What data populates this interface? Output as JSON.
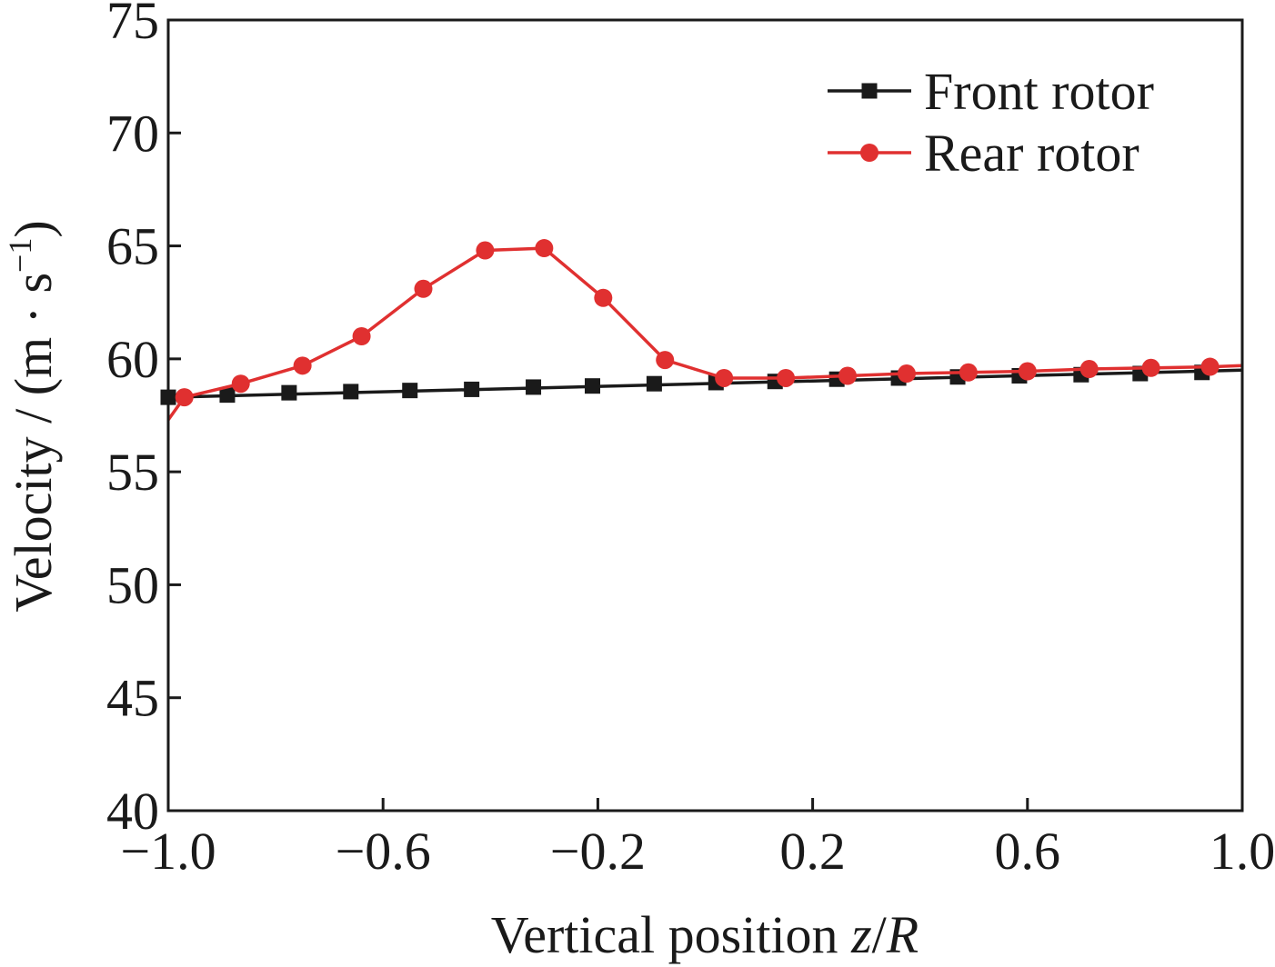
{
  "chart_data": {
    "type": "line",
    "title": "",
    "xlabel": "Vertical position z/R",
    "xlabel_parts": {
      "pre": "Vertical position ",
      "var1": "z",
      "slash": "/",
      "var2": "R"
    },
    "ylabel": "Velocity / (m · s−1)",
    "ylabel_parts": {
      "main": "Velocity / (m · s",
      "sup": "−1",
      "close": ")"
    },
    "xlim": [
      -1.0,
      1.0
    ],
    "ylim": [
      40,
      75
    ],
    "xticks": [
      -1.0,
      -0.6,
      -0.2,
      0.2,
      0.6,
      1.0
    ],
    "xtick_labels": [
      "−1.0",
      "−0.6",
      "−0.2",
      "0.2",
      "0.6",
      "1.0"
    ],
    "yticks": [
      40,
      45,
      50,
      55,
      60,
      65,
      70,
      75
    ],
    "ytick_labels": [
      "40",
      "45",
      "50",
      "55",
      "60",
      "65",
      "70",
      "75"
    ],
    "legend_position": "top-right",
    "series": [
      {
        "name": "Front rotor",
        "color": "#1a1a1a",
        "marker": "square",
        "line_x": [
          -1.0,
          1.0
        ],
        "line_y": [
          58.3,
          59.5
        ],
        "x": [
          -1.0,
          -0.89,
          -0.775,
          -0.66,
          -0.55,
          -0.435,
          -0.32,
          -0.21,
          -0.095,
          0.02,
          0.13,
          0.245,
          0.36,
          0.47,
          0.585,
          0.7,
          0.81,
          0.925
        ],
        "values": [
          58.3,
          58.4,
          58.5,
          58.55,
          58.6,
          58.65,
          58.75,
          58.8,
          58.9,
          58.95,
          59.0,
          59.1,
          59.15,
          59.2,
          59.25,
          59.3,
          59.35,
          59.4
        ]
      },
      {
        "name": "Rear rotor",
        "color": "#e03030",
        "marker": "circle",
        "line_x": [
          -1.0,
          -0.97,
          -0.865,
          -0.75,
          -0.64,
          -0.525,
          -0.41,
          -0.3,
          -0.19,
          -0.075,
          0.035,
          0.15,
          0.265,
          0.375,
          0.49,
          0.6,
          0.715,
          0.83,
          0.94,
          1.0
        ],
        "line_y": [
          57.3,
          58.3,
          58.9,
          59.7,
          61.0,
          63.1,
          64.8,
          64.9,
          62.7,
          59.95,
          59.15,
          59.15,
          59.25,
          59.35,
          59.4,
          59.45,
          59.55,
          59.6,
          59.65,
          59.7
        ],
        "x": [
          -0.97,
          -0.865,
          -0.75,
          -0.64,
          -0.525,
          -0.41,
          -0.3,
          -0.19,
          -0.075,
          0.035,
          0.15,
          0.265,
          0.375,
          0.49,
          0.6,
          0.715,
          0.83,
          0.94
        ],
        "values": [
          58.3,
          58.9,
          59.7,
          61.0,
          63.1,
          64.8,
          64.9,
          62.7,
          59.95,
          59.15,
          59.15,
          59.25,
          59.35,
          59.4,
          59.45,
          59.55,
          59.6,
          59.65
        ]
      }
    ]
  }
}
